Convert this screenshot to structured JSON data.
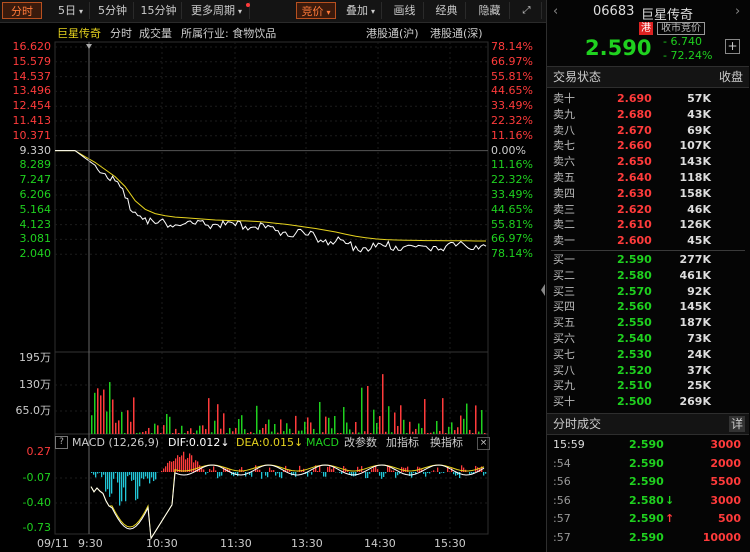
{
  "toolbar": {
    "left_tabs": [
      {
        "label": "分时",
        "active": true
      },
      {
        "label": "5日",
        "dropdown": true
      },
      {
        "label": "5分钟"
      },
      {
        "label": "15分钟"
      },
      {
        "label": "更多周期",
        "dropdown": true
      }
    ],
    "right_tabs": [
      {
        "label": "竞价",
        "dropdown": true,
        "active": true
      },
      {
        "label": "叠加",
        "dropdown": true
      },
      {
        "label": "画线"
      },
      {
        "label": "经典"
      },
      {
        "label": "隐藏"
      }
    ]
  },
  "chart_info": {
    "name": "巨星传奇",
    "tabs": [
      "分时",
      "成交量",
      "所属行业: 食物饮品"
    ],
    "hk_connect_sh": "港股通(沪)",
    "hk_connect_sz": "港股通(深)"
  },
  "price_axis": {
    "left": [
      "16.620",
      "15.579",
      "14.537",
      "13.496",
      "12.454",
      "11.413",
      "10.371",
      "9.330",
      "8.289",
      "7.247",
      "6.206",
      "5.164",
      "4.123",
      "3.081",
      "2.040"
    ],
    "right": [
      "78.14%",
      "66.97%",
      "55.81%",
      "44.65%",
      "33.49%",
      "22.32%",
      "11.16%",
      "0.00%",
      "11.16%",
      "22.32%",
      "33.49%",
      "44.65%",
      "55.81%",
      "66.97%",
      "78.14%"
    ]
  },
  "volume_axis": [
    "195万",
    "130万",
    "65.0万"
  ],
  "macd_bar": {
    "title": "MACD (12,26,9)",
    "dif": "DIF:0.012↓",
    "dea": "DEA:0.015↓",
    "macd": "MACD",
    "change_params": "改参数",
    "add_indicator": "加指标",
    "switch_indicator": "换指标"
  },
  "macd_axis": [
    "0.27",
    "-0.07",
    "-0.40",
    "-0.73"
  ],
  "time_axis": [
    "09/11",
    "9:30",
    "10:30",
    "11:30",
    "13:30",
    "14:30",
    "15:30"
  ],
  "quote": {
    "code": "06683",
    "name": "巨星传奇",
    "market_badge": "港",
    "status_badge": "收市竞价",
    "price": "2.590",
    "change": "- 6.740",
    "change_pct": "- 72.24%",
    "add": "+"
  },
  "order_book": {
    "title": "交易状态",
    "collapse": "收盘",
    "asks": [
      {
        "label": "卖十",
        "price": "2.690",
        "vol": "57K"
      },
      {
        "label": "卖九",
        "price": "2.680",
        "vol": "43K"
      },
      {
        "label": "卖八",
        "price": "2.670",
        "vol": "69K"
      },
      {
        "label": "卖七",
        "price": "2.660",
        "vol": "107K"
      },
      {
        "label": "卖六",
        "price": "2.650",
        "vol": "143K"
      },
      {
        "label": "卖五",
        "price": "2.640",
        "vol": "118K"
      },
      {
        "label": "卖四",
        "price": "2.630",
        "vol": "158K"
      },
      {
        "label": "卖三",
        "price": "2.620",
        "vol": "46K"
      },
      {
        "label": "卖二",
        "price": "2.610",
        "vol": "126K"
      },
      {
        "label": "卖一",
        "price": "2.600",
        "vol": "45K"
      }
    ],
    "bids": [
      {
        "label": "买一",
        "price": "2.590",
        "vol": "277K"
      },
      {
        "label": "买二",
        "price": "2.580",
        "vol": "461K"
      },
      {
        "label": "买三",
        "price": "2.570",
        "vol": "92K"
      },
      {
        "label": "买四",
        "price": "2.560",
        "vol": "145K"
      },
      {
        "label": "买五",
        "price": "2.550",
        "vol": "187K"
      },
      {
        "label": "买六",
        "price": "2.540",
        "vol": "73K"
      },
      {
        "label": "买七",
        "price": "2.530",
        "vol": "24K"
      },
      {
        "label": "买八",
        "price": "2.520",
        "vol": "37K"
      },
      {
        "label": "买九",
        "price": "2.510",
        "vol": "25K"
      },
      {
        "label": "买十",
        "price": "2.500",
        "vol": "269K"
      }
    ]
  },
  "trades": {
    "title": "分时成交",
    "detail": "详",
    "rows": [
      {
        "time": "15:59",
        "price": "2.590",
        "arrow": "",
        "vol": "3000"
      },
      {
        "time": ":54",
        "price": "2.590",
        "arrow": "",
        "vol": "2000"
      },
      {
        "time": ":56",
        "price": "2.590",
        "arrow": "",
        "vol": "5500"
      },
      {
        "time": ":56",
        "price": "2.580",
        "arrow": "↓",
        "vol": "3000"
      },
      {
        "time": ":57",
        "price": "2.590",
        "arrow": "↑",
        "vol": "500"
      },
      {
        "time": ":57",
        "price": "2.590",
        "arrow": "",
        "vol": "10000"
      }
    ]
  },
  "colors": {
    "up": "#ff3b3b",
    "down": "#1fd11f",
    "price_line": "#ffffff",
    "avg_line": "#e6d31e",
    "macd_neg": "#22c7d8",
    "accent": "#ff7a3a"
  },
  "chart_data": {
    "type": "line",
    "title": "巨星传奇",
    "prev_close": 9.33,
    "ylim": [
      2.04,
      16.62
    ],
    "x_ticks": [
      "9:30",
      "10:30",
      "11:30",
      "13:30",
      "14:30",
      "15:30"
    ],
    "series": [
      {
        "values": [
          9.33,
          9.33,
          9.33,
          8.8,
          8.3,
          7.7,
          7.2,
          6.0,
          5.0,
          4.6,
          4.2,
          4.25,
          4.1,
          4.2,
          4.15,
          4.1,
          4.15,
          4.1,
          4.05,
          4.0,
          3.95,
          3.9,
          3.7,
          3.6,
          3.5,
          3.4,
          3.25,
          3.05,
          2.95,
          2.8,
          2.6,
          2.5,
          2.55,
          2.58,
          2.6,
          2.6,
          2.55,
          2.6,
          2.58,
          2.6,
          2.62,
          2.6,
          2.65,
          2.6
        ]
      },
      {
        "values": [
          9.33,
          9.33,
          9.33,
          8.9,
          8.5,
          8.0,
          7.5,
          6.8,
          5.8,
          5.2,
          4.9,
          4.75,
          4.65,
          4.6,
          4.55,
          4.5,
          4.45,
          4.42,
          4.4,
          4.38,
          4.35,
          4.3,
          4.22,
          4.15,
          4.05,
          3.95,
          3.85,
          3.72,
          3.6,
          3.45,
          3.3,
          3.2,
          3.12,
          3.07,
          3.04,
          3.02,
          3.01,
          3.0,
          3.0,
          2.99,
          2.98,
          2.98,
          2.97,
          2.97
        ]
      }
    ],
    "volume": {
      "ylim": [
        0,
        1950000
      ],
      "ticks": [
        650000,
        1300000,
        1950000
      ]
    },
    "macd": {
      "ylim": [
        -0.73,
        0.27
      ],
      "ticks": [
        0.27,
        -0.07,
        -0.4,
        -0.73
      ]
    }
  }
}
